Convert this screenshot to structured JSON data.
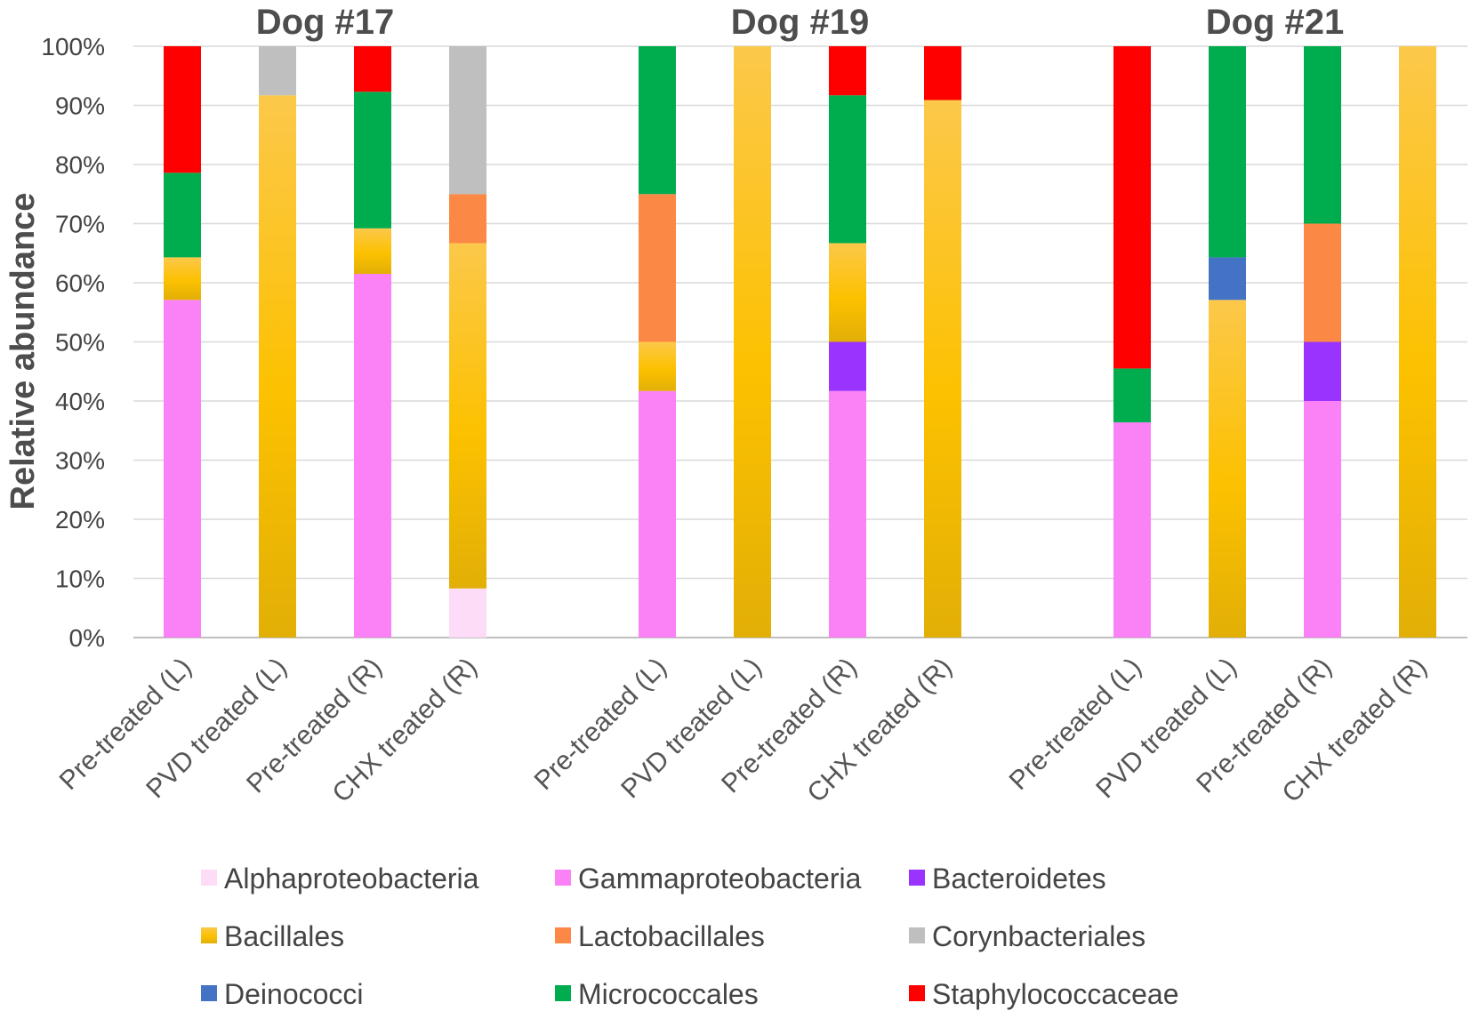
{
  "chart_data": {
    "type": "bar",
    "stacked": true,
    "ylabel": "Relative abundance",
    "ylim": [
      0,
      100
    ],
    "y_ticks": [
      "0%",
      "10%",
      "20%",
      "30%",
      "40%",
      "50%",
      "60%",
      "70%",
      "80%",
      "90%",
      "100%"
    ],
    "legend_position": "bottom",
    "taxa": [
      {
        "name": "Alphaproteobacteria",
        "color": "#fddcf7"
      },
      {
        "name": "Gammaproteobacteria",
        "color": "#fb81f6"
      },
      {
        "name": "Bacteroidetes",
        "color": "#9b33ff"
      },
      {
        "name": "Bacillales",
        "color": "#f5b400"
      },
      {
        "name": "Lactobacillales",
        "color": "#fb8844"
      },
      {
        "name": "Corynbacteriales",
        "color": "#bfbfbf"
      },
      {
        "name": "Deinococci",
        "color": "#4472c4"
      },
      {
        "name": "Micrococcales",
        "color": "#00ad4e"
      },
      {
        "name": "Staphylococcaceae",
        "color": "#ff0000"
      }
    ],
    "groups": [
      {
        "title": "Dog #17",
        "bars": [
          {
            "label": "Pre-treated (L)",
            "values": {
              "Gammaproteobacteria": 57.1,
              "Bacillales": 7.2,
              "Micrococcales": 14.3,
              "Staphylococcaceae": 21.4
            }
          },
          {
            "label": "PVD treated (L)",
            "values": {
              "Bacillales": 91.7,
              "Corynbacteriales": 8.3
            }
          },
          {
            "label": "Pre-treated (R)",
            "values": {
              "Gammaproteobacteria": 61.5,
              "Bacillales": 7.7,
              "Micrococcales": 23.1,
              "Staphylococcaceae": 7.7
            }
          },
          {
            "label": "CHX treated (R)",
            "values": {
              "Alphaproteobacteria": 8.3,
              "Bacillales": 58.4,
              "Lactobacillales": 8.3,
              "Corynbacteriales": 25.0
            }
          }
        ]
      },
      {
        "title": "Dog #19",
        "bars": [
          {
            "label": "Pre-treated (L)",
            "values": {
              "Gammaproteobacteria": 41.7,
              "Bacillales": 8.3,
              "Lactobacillales": 25.0,
              "Micrococcales": 25.0
            }
          },
          {
            "label": "PVD treated (L)",
            "values": {
              "Bacillales": 100
            }
          },
          {
            "label": "Pre-treated (R)",
            "values": {
              "Gammaproteobacteria": 41.7,
              "Bacteroidetes": 8.3,
              "Bacillales": 16.7,
              "Micrococcales": 25.0,
              "Staphylococcaceae": 8.3
            }
          },
          {
            "label": "CHX treated (R)",
            "values": {
              "Bacillales": 90.9,
              "Staphylococcaceae": 9.1
            }
          }
        ]
      },
      {
        "title": "Dog #21",
        "bars": [
          {
            "label": "Pre-treated (L)",
            "values": {
              "Gammaproteobacteria": 36.4,
              "Micrococcales": 9.1,
              "Staphylococcaceae": 54.5
            }
          },
          {
            "label": "PVD treated (L)",
            "values": {
              "Bacillales": 57.1,
              "Deinococci": 7.2,
              "Micrococcales": 35.7
            }
          },
          {
            "label": "Pre-treated (R)",
            "values": {
              "Gammaproteobacteria": 40.0,
              "Bacteroidetes": 10.0,
              "Lactobacillales": 20.0,
              "Micrococcales": 30.0
            }
          },
          {
            "label": "CHX treated (R)",
            "values": {
              "Bacillales": 100
            }
          }
        ]
      }
    ]
  }
}
